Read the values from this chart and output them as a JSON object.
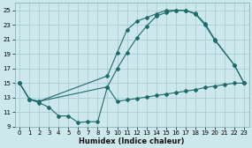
{
  "xlabel": "Humidex (Indice chaleur)",
  "bg_color": "#cde8ec",
  "grid_color": "#aacdd4",
  "line_color": "#1e6b6b",
  "ylim": [
    9,
    26
  ],
  "xlim": [
    -0.5,
    23.5
  ],
  "yticks": [
    9,
    11,
    13,
    15,
    17,
    19,
    21,
    23,
    25
  ],
  "xticks": [
    0,
    1,
    2,
    3,
    4,
    5,
    6,
    7,
    8,
    9,
    10,
    11,
    12,
    13,
    14,
    15,
    16,
    17,
    18,
    19,
    20,
    21,
    22,
    23
  ],
  "line1_x": [
    0,
    1,
    2,
    9,
    10,
    11,
    12,
    13,
    14,
    15,
    16,
    17,
    18,
    19,
    20,
    22,
    23
  ],
  "line1_y": [
    15,
    12.8,
    12.5,
    16.0,
    19.2,
    22.3,
    23.5,
    24.0,
    24.5,
    25.0,
    25.0,
    25.0,
    24.6,
    23.2,
    21.0,
    17.5,
    15.0
  ],
  "line2_x": [
    0,
    1,
    2,
    9,
    10,
    11,
    12,
    13,
    14,
    15,
    16,
    17,
    18,
    19,
    20,
    22,
    23
  ],
  "line2_y": [
    15,
    12.8,
    12.5,
    14.5,
    17.0,
    19.2,
    21.2,
    22.8,
    24.2,
    24.7,
    25.0,
    25.0,
    24.5,
    23.0,
    20.9,
    17.5,
    15.0
  ],
  "line3_x": [
    0,
    1,
    2,
    3,
    4,
    5,
    6,
    7,
    8,
    9,
    10,
    11,
    12,
    13,
    14,
    15,
    16,
    17,
    18,
    19,
    20,
    21,
    22,
    23
  ],
  "line3_y": [
    15,
    12.8,
    12.3,
    11.7,
    10.5,
    10.5,
    9.6,
    9.7,
    9.7,
    14.5,
    12.5,
    12.7,
    12.9,
    13.1,
    13.3,
    13.5,
    13.7,
    13.9,
    14.1,
    14.4,
    14.6,
    14.8,
    15.0,
    15.0
  ]
}
